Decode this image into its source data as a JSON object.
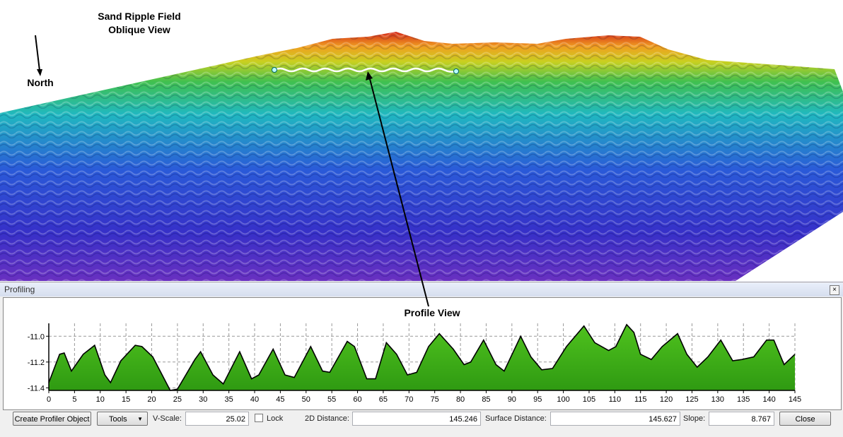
{
  "view": {
    "title_lines": [
      "Sand Ripple Field",
      "Oblique View"
    ],
    "north": "North",
    "profile_label": "Profile View"
  },
  "panel": {
    "title": "Profiling",
    "create_button": "Create Profiler Object",
    "tools_button": "Tools",
    "vscale_label": "V-Scale:",
    "vscale_value": "25.02",
    "lock_label": "Lock",
    "distance_2d_label": "2D Distance:",
    "distance_2d_value": "145.246",
    "surface_distance_label": "Surface Distance:",
    "surface_distance_value": "145.627",
    "slope_label": "Slope:",
    "slope_value": "8.767",
    "close_button": "Close"
  },
  "chart_data": {
    "type": "area",
    "color": "#000000",
    "fill_color": "#4fc21e",
    "grid": true,
    "x": [
      0,
      2.1,
      3.0,
      4.4,
      5.8,
      6.7,
      8.9,
      10.9,
      12.0,
      14.0,
      16.8,
      18.1,
      20.2,
      23.6,
      25.0,
      28.4,
      29.5,
      31.9,
      33.9,
      37.1,
      39.4,
      40.8,
      43.6,
      45.9,
      47.7,
      50.9,
      53.2,
      54.6,
      58.0,
      59.4,
      61.8,
      63.5,
      65.6,
      67.6,
      69.7,
      71.5,
      73.8,
      75.9,
      78.6,
      80.7,
      82.0,
      84.5,
      86.9,
      88.5,
      91.7,
      93.7,
      95.8,
      97.9,
      100.6,
      104.0,
      106.1,
      108.8,
      110.2,
      112.3,
      113.7,
      115.0,
      117.1,
      119.2,
      122.2,
      124.0,
      126.0,
      128.1,
      130.6,
      132.9,
      134.7,
      137.0,
      139.5,
      140.9,
      142.9,
      145.0
    ],
    "values": [
      -11.36,
      -11.14,
      -11.13,
      -11.27,
      -11.19,
      -11.14,
      -11.07,
      -11.3,
      -11.36,
      -11.19,
      -11.07,
      -11.08,
      -11.16,
      -11.42,
      -11.41,
      -11.18,
      -11.12,
      -11.3,
      -11.37,
      -11.12,
      -11.33,
      -11.3,
      -11.1,
      -11.3,
      -11.32,
      -11.08,
      -11.27,
      -11.28,
      -11.04,
      -11.08,
      -11.33,
      -11.33,
      -11.05,
      -11.14,
      -11.3,
      -11.28,
      -11.08,
      -10.98,
      -11.1,
      -11.22,
      -11.2,
      -11.03,
      -11.22,
      -11.27,
      -11.0,
      -11.16,
      -11.26,
      -11.25,
      -11.08,
      -10.92,
      -11.05,
      -11.11,
      -11.08,
      -10.91,
      -10.97,
      -11.14,
      -11.18,
      -11.08,
      -10.98,
      -11.14,
      -11.24,
      -11.16,
      -11.03,
      -11.19,
      -11.18,
      -11.16,
      -11.03,
      -11.03,
      -11.22,
      -11.14
    ],
    "xlim": [
      0,
      145
    ],
    "xticks": [
      0,
      5,
      10,
      15,
      20,
      25,
      30,
      35,
      40,
      45,
      50,
      55,
      60,
      65,
      70,
      75,
      80,
      85,
      90,
      95,
      100,
      105,
      110,
      115,
      120,
      125,
      130,
      135,
      140,
      145
    ],
    "ylim": [
      -11.42,
      -10.9
    ],
    "yticks": [
      {
        "value": -11,
        "label": "-11.0"
      },
      -11.2,
      -11.4
    ]
  }
}
